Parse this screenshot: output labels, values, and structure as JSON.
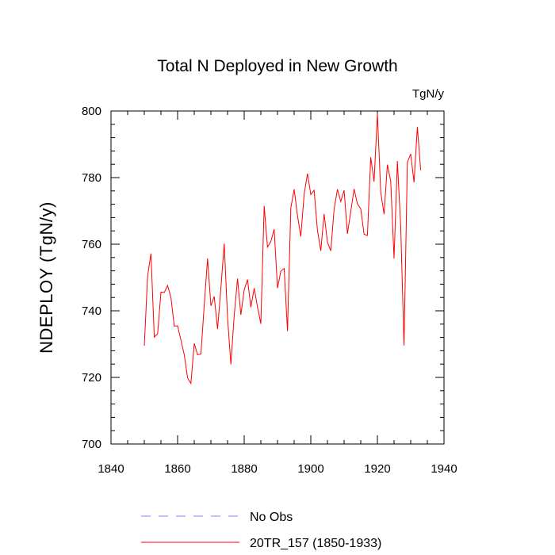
{
  "chart_data": {
    "type": "line",
    "title": "Total N Deployed in New Growth",
    "units": "TgN/y",
    "ylabel": "NDEPLOY  (TgN/y)",
    "xlabel": "",
    "xlim": [
      1840,
      1940
    ],
    "ylim": [
      700,
      800
    ],
    "x_ticks": [
      1840,
      1860,
      1880,
      1900,
      1920,
      1940
    ],
    "y_ticks": [
      700,
      720,
      740,
      760,
      780,
      800
    ],
    "grid": false,
    "legend_position": "bottom",
    "series": [
      {
        "name": "No Obs",
        "color": "#8080ff",
        "dash": "dashed",
        "x": [],
        "values": []
      },
      {
        "name": "20TR_157 (1850-1933)",
        "color": "#ff0000",
        "dash": "solid",
        "x": [
          1850,
          1851,
          1852,
          1853,
          1854,
          1855,
          1856,
          1857,
          1858,
          1859,
          1860,
          1861,
          1862,
          1863,
          1864,
          1865,
          1866,
          1867,
          1868,
          1869,
          1870,
          1871,
          1872,
          1873,
          1874,
          1875,
          1876,
          1877,
          1878,
          1879,
          1880,
          1881,
          1882,
          1883,
          1884,
          1885,
          1886,
          1887,
          1888,
          1889,
          1890,
          1891,
          1892,
          1893,
          1894,
          1895,
          1896,
          1897,
          1898,
          1899,
          1900,
          1901,
          1902,
          1903,
          1904,
          1905,
          1906,
          1907,
          1908,
          1909,
          1910,
          1911,
          1912,
          1913,
          1914,
          1915,
          1916,
          1917,
          1918,
          1919,
          1920,
          1921,
          1922,
          1923,
          1924,
          1925,
          1926,
          1927,
          1928,
          1929,
          1930,
          1931,
          1932,
          1933
        ],
        "values": [
          729.5,
          750.5,
          757.2,
          732.1,
          733.1,
          745.6,
          745.5,
          747.6,
          744.0,
          735.4,
          735.5,
          731.2,
          726.8,
          719.8,
          718.2,
          730.2,
          726.8,
          727.0,
          741.7,
          755.7,
          741.5,
          744.3,
          734.5,
          746.8,
          760.2,
          738.0,
          723.9,
          738.6,
          749.7,
          738.8,
          746.3,
          749.4,
          741.1,
          746.8,
          741.1,
          736.1,
          771.5,
          759.1,
          760.8,
          764.5,
          746.8,
          751.9,
          752.7,
          733.9,
          770.9,
          776.5,
          768.6,
          762.3,
          775.0,
          781.2,
          774.9,
          776.2,
          764.1,
          758.0,
          769.1,
          760.6,
          758.0,
          770.5,
          776.5,
          772.8,
          776.2,
          763.1,
          769.8,
          776.6,
          772.1,
          770.6,
          763.0,
          762.6,
          786.1,
          778.8,
          799.2,
          775.6,
          769.0,
          783.9,
          778.9,
          755.7,
          785.0,
          765.3,
          729.6,
          784.6,
          787.1,
          778.6,
          795.2,
          782.2
        ]
      }
    ]
  }
}
